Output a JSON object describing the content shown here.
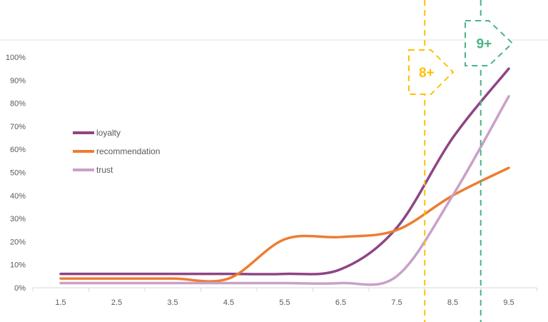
{
  "chart_data": {
    "type": "line",
    "title": "",
    "xlabel": "",
    "ylabel": "",
    "x": [
      1.5,
      2.5,
      3.5,
      4.5,
      5.5,
      6.5,
      7.5,
      8.5,
      9.5
    ],
    "x_tick_labels": [
      "1.5",
      "2.5",
      "3.5",
      "4.5",
      "5.5",
      "6.5",
      "7.5",
      "8.5",
      "9.5"
    ],
    "y_tick_labels": [
      "0%",
      "10%",
      "20%",
      "30%",
      "40%",
      "50%",
      "60%",
      "70%",
      "80%",
      "90%",
      "100%"
    ],
    "ylim": [
      0,
      100
    ],
    "legend_position": "left-middle",
    "series": [
      {
        "name": "loyalty",
        "color": "#8E4585",
        "values": [
          6,
          6,
          6,
          6,
          6,
          8,
          26,
          65,
          95
        ]
      },
      {
        "name": "recommendation",
        "color": "#ED7D31",
        "values": [
          4,
          4,
          4,
          4,
          21,
          22,
          25,
          40,
          52
        ]
      },
      {
        "name": "trust",
        "color": "#C9A0C8",
        "values": [
          2,
          2,
          2,
          2,
          2,
          2,
          5,
          40,
          83
        ]
      }
    ],
    "annotations": [
      {
        "label": "8+",
        "x": 8,
        "color": "#FFC000"
      },
      {
        "label": "9+",
        "x": 9,
        "color": "#4CB386"
      }
    ]
  }
}
